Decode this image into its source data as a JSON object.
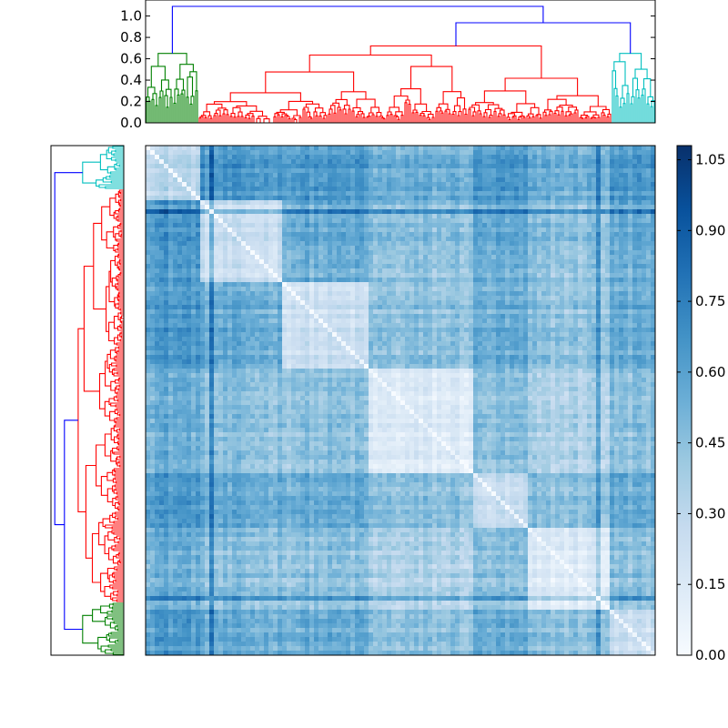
{
  "chart_data": {
    "type": "heatmap",
    "title": "",
    "xlabel": "",
    "ylabel": "",
    "colormap": "Blues",
    "colorbar": {
      "min": 0.0,
      "max": 1.08,
      "ticks": [
        "0.00",
        "0.15",
        "0.30",
        "0.45",
        "0.60",
        "0.75",
        "0.90",
        "1.05"
      ],
      "tick_values": [
        0.0,
        0.15,
        0.3,
        0.45,
        0.6,
        0.75,
        0.9,
        1.05
      ]
    },
    "top_dendrogram": {
      "orientation": "top",
      "ylim": [
        0.0,
        1.15
      ],
      "ticks": [
        "0.0",
        "0.2",
        "0.4",
        "0.6",
        "0.8",
        "1.0"
      ],
      "tick_values": [
        0.0,
        0.2,
        0.4,
        0.6,
        0.8,
        1.0
      ],
      "root_height": 1.09,
      "clusters": [
        {
          "color": "#008000",
          "leaf_span": [
            0.0,
            0.105
          ],
          "height": 0.65
        },
        {
          "color": "#ff0000",
          "leaf_span": [
            0.105,
            0.915
          ],
          "height": 0.72
        },
        {
          "color": "#00bfbf",
          "leaf_span": [
            0.915,
            1.0
          ],
          "height": 0.65
        }
      ],
      "link_color": "#0000ff"
    },
    "left_dendrogram": {
      "orientation": "left",
      "root_height": 1.09,
      "clusters": [
        {
          "color": "#00bfbf",
          "leaf_span": [
            0.0,
            0.085
          ],
          "height": 0.65
        },
        {
          "color": "#ff0000",
          "leaf_span": [
            0.085,
            0.895
          ],
          "height": 0.72
        },
        {
          "color": "#008000",
          "leaf_span": [
            0.895,
            1.0
          ],
          "height": 0.65
        }
      ],
      "link_color": "#0000ff"
    },
    "matrix_blocks": [
      {
        "span": [
          0.0,
          0.105
        ],
        "level": "high"
      },
      {
        "span": [
          0.105,
          0.27
        ],
        "level": "mid"
      },
      {
        "span": [
          0.27,
          0.44
        ],
        "level": "mid"
      },
      {
        "span": [
          0.44,
          0.64
        ],
        "level": "low"
      },
      {
        "span": [
          0.64,
          0.75
        ],
        "level": "mid"
      },
      {
        "span": [
          0.75,
          0.915
        ],
        "level": "low"
      },
      {
        "span": [
          0.915,
          1.0
        ],
        "level": "mid"
      }
    ]
  }
}
